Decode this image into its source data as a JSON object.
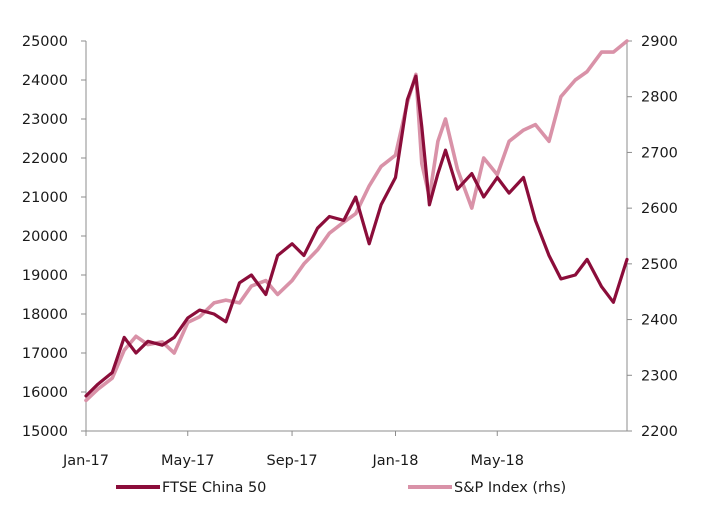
{
  "chart_data": {
    "type": "line",
    "title": "",
    "xlabel": "",
    "ylabel": "",
    "x_ticks": [
      "Jan-17",
      "May-17",
      "Sep-17",
      "Jan-18",
      "May-18"
    ],
    "xlim": [
      "2017-01-01",
      "2018-10-01"
    ],
    "ylim_left": [
      15000,
      25000
    ],
    "yticks_left": [
      "15000",
      "16000",
      "17000",
      "18000",
      "19000",
      "20000",
      "21000",
      "22000",
      "23000",
      "24000",
      "25000"
    ],
    "ylim_right": [
      2200,
      2900
    ],
    "yticks_right": [
      "2200",
      "2300",
      "2400",
      "2500",
      "2600",
      "2700",
      "2800",
      "2900"
    ],
    "grid": false,
    "legend_position": "bottom",
    "series": [
      {
        "name": "FTSE China 50",
        "axis": "left",
        "color": "#8b0d3a",
        "x": [
          "2017-01-01",
          "2017-01-15",
          "2017-02-01",
          "2017-02-15",
          "2017-03-01",
          "2017-03-15",
          "2017-04-01",
          "2017-04-15",
          "2017-05-01",
          "2017-05-15",
          "2017-06-01",
          "2017-06-15",
          "2017-07-01",
          "2017-07-15",
          "2017-08-01",
          "2017-08-15",
          "2017-09-01",
          "2017-09-15",
          "2017-10-01",
          "2017-10-15",
          "2017-11-01",
          "2017-11-15",
          "2017-12-01",
          "2017-12-15",
          "2018-01-01",
          "2018-01-15",
          "2018-01-25",
          "2018-02-01",
          "2018-02-10",
          "2018-02-20",
          "2018-03-01",
          "2018-03-15",
          "2018-04-01",
          "2018-04-15",
          "2018-05-01",
          "2018-05-15",
          "2018-06-01",
          "2018-06-15",
          "2018-07-01",
          "2018-07-15",
          "2018-08-01",
          "2018-08-15",
          "2018-09-01",
          "2018-09-15",
          "2018-10-01"
        ],
        "values": [
          15900,
          16200,
          16500,
          17400,
          17000,
          17300,
          17200,
          17400,
          17900,
          18100,
          18000,
          17800,
          18800,
          19000,
          18500,
          19500,
          19800,
          19500,
          20200,
          20500,
          20400,
          21000,
          19800,
          20800,
          21500,
          23500,
          24100,
          22800,
          20800,
          21600,
          22200,
          21200,
          21600,
          21000,
          21500,
          21100,
          21500,
          20400,
          19500,
          18900,
          19000,
          19400,
          18700,
          18300,
          19400
        ]
      },
      {
        "name": "S&P Index (rhs)",
        "axis": "right",
        "color": "#d992a8",
        "x": [
          "2017-01-01",
          "2017-01-15",
          "2017-02-01",
          "2017-02-15",
          "2017-03-01",
          "2017-03-15",
          "2017-04-01",
          "2017-04-15",
          "2017-05-01",
          "2017-05-15",
          "2017-06-01",
          "2017-06-15",
          "2017-07-01",
          "2017-07-15",
          "2017-08-01",
          "2017-08-15",
          "2017-09-01",
          "2017-09-15",
          "2017-10-01",
          "2017-10-15",
          "2017-11-01",
          "2017-11-15",
          "2017-12-01",
          "2017-12-15",
          "2018-01-01",
          "2018-01-15",
          "2018-01-25",
          "2018-02-01",
          "2018-02-10",
          "2018-02-20",
          "2018-03-01",
          "2018-03-15",
          "2018-04-01",
          "2018-04-15",
          "2018-05-01",
          "2018-05-15",
          "2018-06-01",
          "2018-06-15",
          "2018-07-01",
          "2018-07-15",
          "2018-08-01",
          "2018-08-15",
          "2018-09-01",
          "2018-09-15",
          "2018-10-01"
        ],
        "values": [
          2255,
          2275,
          2295,
          2345,
          2370,
          2355,
          2360,
          2340,
          2395,
          2405,
          2430,
          2435,
          2430,
          2460,
          2470,
          2445,
          2470,
          2500,
          2525,
          2555,
          2575,
          2590,
          2640,
          2675,
          2695,
          2790,
          2840,
          2680,
          2620,
          2720,
          2760,
          2670,
          2600,
          2690,
          2660,
          2720,
          2740,
          2750,
          2720,
          2800,
          2830,
          2845,
          2880,
          2880,
          2900
        ]
      }
    ]
  }
}
